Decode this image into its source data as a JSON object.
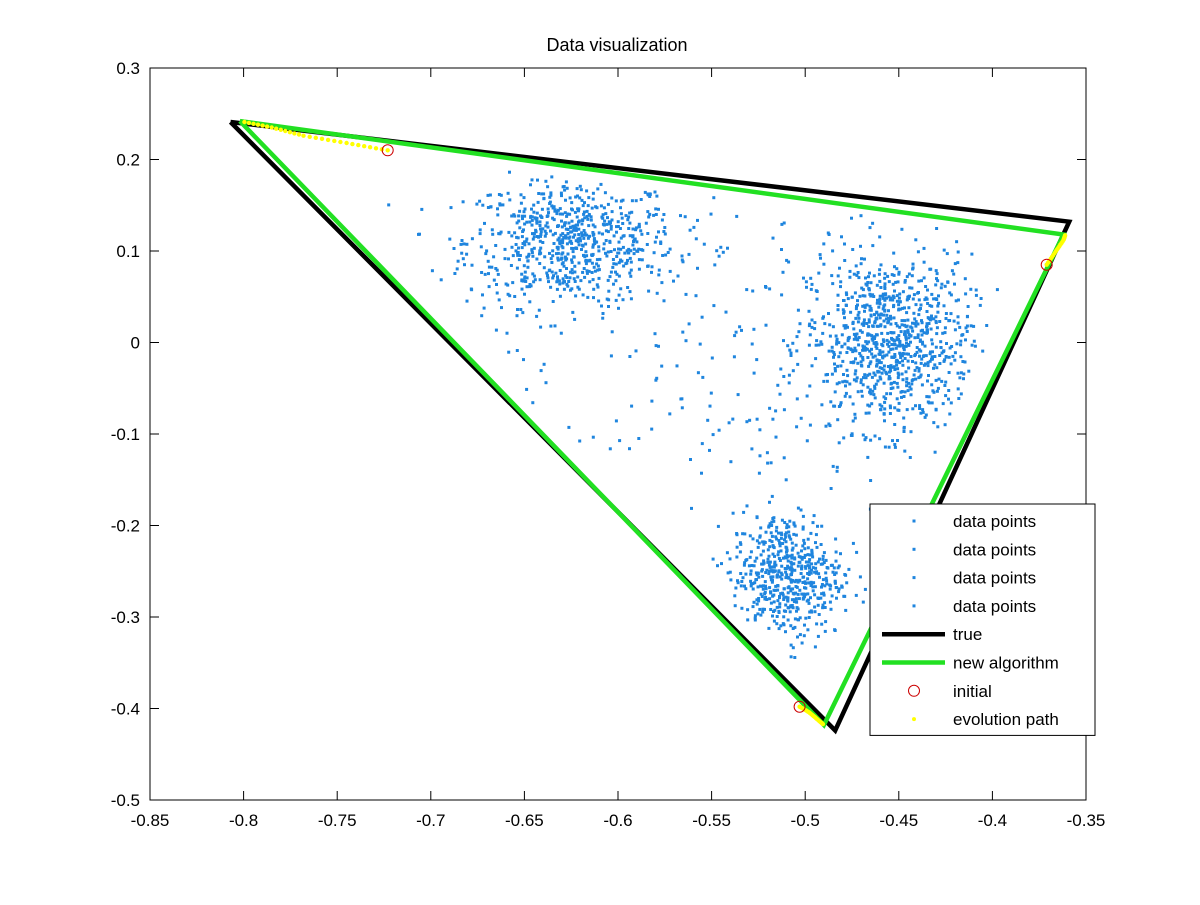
{
  "chart_data": {
    "type": "scatter",
    "title": "Data visualization",
    "xlabel": "",
    "ylabel": "",
    "xlim": [
      -0.85,
      -0.35
    ],
    "ylim": [
      -0.5,
      0.3
    ],
    "xticks": [
      -0.85,
      -0.8,
      -0.75,
      -0.7,
      -0.65,
      -0.6,
      -0.55,
      -0.5,
      -0.45,
      -0.4,
      -0.35
    ],
    "yticks": [
      -0.5,
      -0.4,
      -0.3,
      -0.2,
      -0.1,
      0,
      0.1,
      0.2,
      0.3
    ],
    "xtick_labels": [
      "-0.85",
      "-0.8",
      "-0.75",
      "-0.7",
      "-0.65",
      "-0.6",
      "-0.55",
      "-0.5",
      "-0.45",
      "-0.4",
      "-0.35"
    ],
    "ytick_labels": [
      "-0.5",
      "-0.4",
      "-0.3",
      "-0.2",
      "-0.1",
      "0",
      "0.1",
      "0.2",
      "0.3"
    ],
    "grid": false,
    "legend_position": "bottom-right",
    "clusters": [
      {
        "name": "data points",
        "center": [
          -0.625,
          0.11
        ],
        "spread": [
          0.028,
          0.035
        ],
        "count": 700,
        "color": "#1f85de"
      },
      {
        "name": "data points",
        "center": [
          -0.455,
          0.0
        ],
        "spread": [
          0.022,
          0.048
        ],
        "count": 900,
        "color": "#1f85de"
      },
      {
        "name": "data points",
        "center": [
          -0.51,
          -0.255
        ],
        "spread": [
          0.015,
          0.035
        ],
        "count": 550,
        "color": "#1f85de"
      },
      {
        "name": "data points",
        "center": [
          -0.56,
          0.0
        ],
        "spread": [
          0.06,
          0.11
        ],
        "count": 160,
        "color": "#1f85de"
      }
    ],
    "true_simplex": {
      "name": "true",
      "color": "#000000",
      "x": [
        -0.807,
        -0.359,
        -0.484,
        -0.807
      ],
      "y": [
        0.241,
        0.132,
        -0.424,
        0.241
      ]
    },
    "new_algorithm": {
      "name": "new algorithm",
      "color": "#22e022",
      "x": [
        -0.802,
        -0.362,
        -0.49,
        -0.802
      ],
      "y": [
        0.242,
        0.118,
        -0.418,
        0.242
      ]
    },
    "initial_points": {
      "name": "initial",
      "color": "#cc0000",
      "x": [
        -0.723,
        -0.371,
        -0.503
      ],
      "y": [
        0.21,
        0.085,
        -0.398
      ]
    },
    "evolution_path": {
      "name": "evolution path",
      "color": "#ffff00",
      "paths": [
        {
          "x": [
            -0.723,
            -0.745,
            -0.768,
            -0.785,
            -0.802
          ],
          "y": [
            0.21,
            0.218,
            0.226,
            0.235,
            0.242
          ]
        },
        {
          "x": [
            -0.371,
            -0.366,
            -0.362,
            -0.361
          ],
          "y": [
            0.085,
            0.1,
            0.112,
            0.118
          ]
        },
        {
          "x": [
            -0.503,
            -0.498,
            -0.494,
            -0.49
          ],
          "y": [
            -0.398,
            -0.404,
            -0.411,
            -0.418
          ]
        }
      ]
    },
    "legend": [
      {
        "label": "data points",
        "kind": "marker",
        "color": "#1f85de"
      },
      {
        "label": "data points",
        "kind": "marker",
        "color": "#1f85de"
      },
      {
        "label": "data points",
        "kind": "marker",
        "color": "#1f85de"
      },
      {
        "label": "data points",
        "kind": "marker",
        "color": "#1f85de"
      },
      {
        "label": "true",
        "kind": "line",
        "color": "#000000"
      },
      {
        "label": "new algorithm",
        "kind": "line",
        "color": "#22e022"
      },
      {
        "label": "initial",
        "kind": "circle",
        "color": "#cc0000"
      },
      {
        "label": "evolution path",
        "kind": "dot",
        "color": "#ffff00"
      }
    ]
  }
}
